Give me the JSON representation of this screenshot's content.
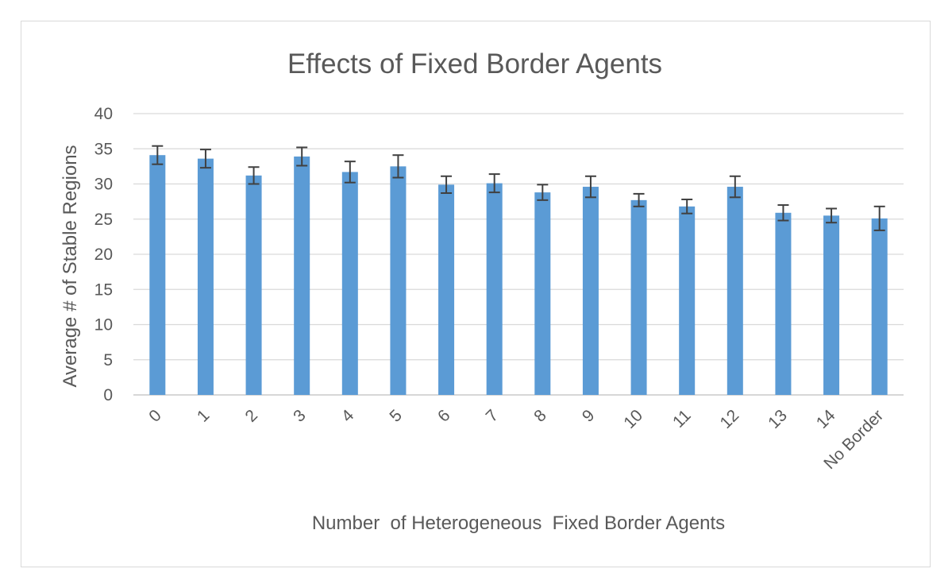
{
  "chart_data": {
    "type": "bar",
    "title": "Effects of Fixed Border Agents",
    "xlabel": "Number  of Heterogeneous  Fixed Border Agents",
    "ylabel": "Average # of Stable Regions",
    "categories": [
      "0",
      "1",
      "2",
      "3",
      "4",
      "5",
      "6",
      "7",
      "8",
      "9",
      "10",
      "11",
      "12",
      "13",
      "14",
      "No Border"
    ],
    "values": [
      34.1,
      33.6,
      31.2,
      33.9,
      31.7,
      32.5,
      29.9,
      30.1,
      28.8,
      29.6,
      27.7,
      26.8,
      29.6,
      25.9,
      25.5,
      25.1
    ],
    "error": [
      1.3,
      1.3,
      1.2,
      1.3,
      1.5,
      1.6,
      1.2,
      1.3,
      1.1,
      1.5,
      0.9,
      1.0,
      1.5,
      1.1,
      1.0,
      1.7
    ],
    "ylim": [
      0,
      40
    ],
    "yticks": [
      0,
      5,
      10,
      15,
      20,
      25,
      30,
      35,
      40
    ],
    "grid": true,
    "legend": "none",
    "bar_color": "#5b9bd5"
  }
}
